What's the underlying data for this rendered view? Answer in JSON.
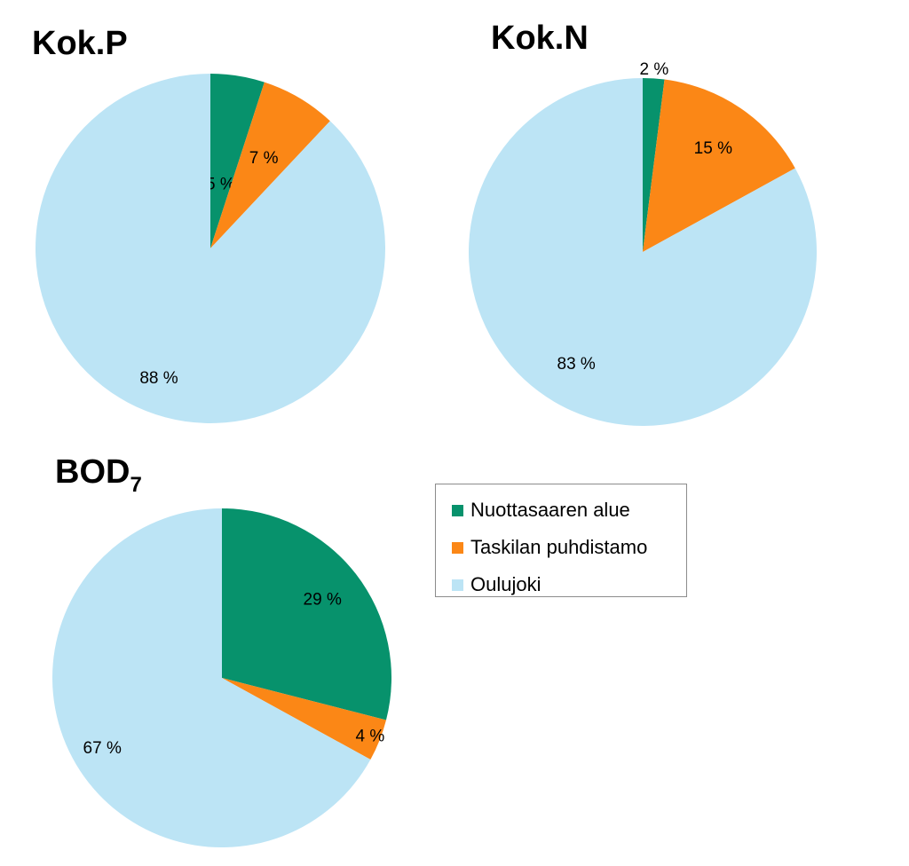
{
  "chart_data": [
    {
      "type": "pie",
      "title": "Kok.P",
      "categories": [
        "Nuottasaaren alue",
        "Taskilan puhdistamo",
        "Oulujoki"
      ],
      "values": [
        5,
        7,
        88
      ],
      "labels": [
        "5 %",
        "7 %",
        "88 %"
      ]
    },
    {
      "type": "pie",
      "title": "Kok.N",
      "categories": [
        "Nuottasaaren alue",
        "Taskilan puhdistamo",
        "Oulujoki"
      ],
      "values": [
        2,
        15,
        83
      ],
      "labels": [
        "2 %",
        "15 %",
        "83 %"
      ]
    },
    {
      "type": "pie",
      "title": "BOD",
      "title_subscript": "7",
      "categories": [
        "Nuottasaaren alue",
        "Taskilan puhdistamo",
        "Oulujoki"
      ],
      "values": [
        29,
        4,
        67
      ],
      "labels": [
        "29 %",
        "4 %",
        "67 %"
      ]
    }
  ],
  "legend": {
    "items": [
      {
        "label": "Nuottasaaren alue",
        "color": "#07926c"
      },
      {
        "label": "Taskilan puhdistamo",
        "color": "#fb8716"
      },
      {
        "label": "Oulujoki",
        "color": "#bce4f5"
      }
    ]
  },
  "colors": [
    "#07926c",
    "#fb8716",
    "#bce4f5"
  ]
}
